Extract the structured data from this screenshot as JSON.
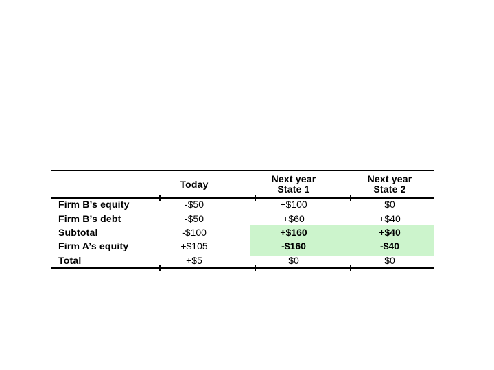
{
  "slide": {
    "background": "#ffffff"
  },
  "table": {
    "header": {
      "today": "Today",
      "state1_line1": "Next year",
      "state1_line2": "State 1",
      "state2_line1": "Next year",
      "state2_line2": "State 2"
    },
    "rows": [
      {
        "label": "Firm B’s equity",
        "today": "-$50",
        "state1": "+$100",
        "state2": "$0"
      },
      {
        "label": "Firm B’s debt",
        "today": "-$50",
        "state1": "+$60",
        "state2": "+$40"
      },
      {
        "label": "Subtotal",
        "today": "-$100",
        "state1": "+$160",
        "state2": "+$40"
      },
      {
        "label": "Firm A’s equity",
        "today": "+$105",
        "state1": "-$160",
        "state2": "-$40"
      },
      {
        "label": "Total",
        "today": "+$5",
        "state1": "$0",
        "state2": "$0"
      }
    ],
    "highlight": {
      "color": "#ccf4cc",
      "highlighted_rows": [
        "Subtotal",
        "Firm A’s equity"
      ],
      "highlighted_columns": [
        "Next year State 1",
        "Next year State 2"
      ]
    },
    "rule_color": "#000000"
  }
}
